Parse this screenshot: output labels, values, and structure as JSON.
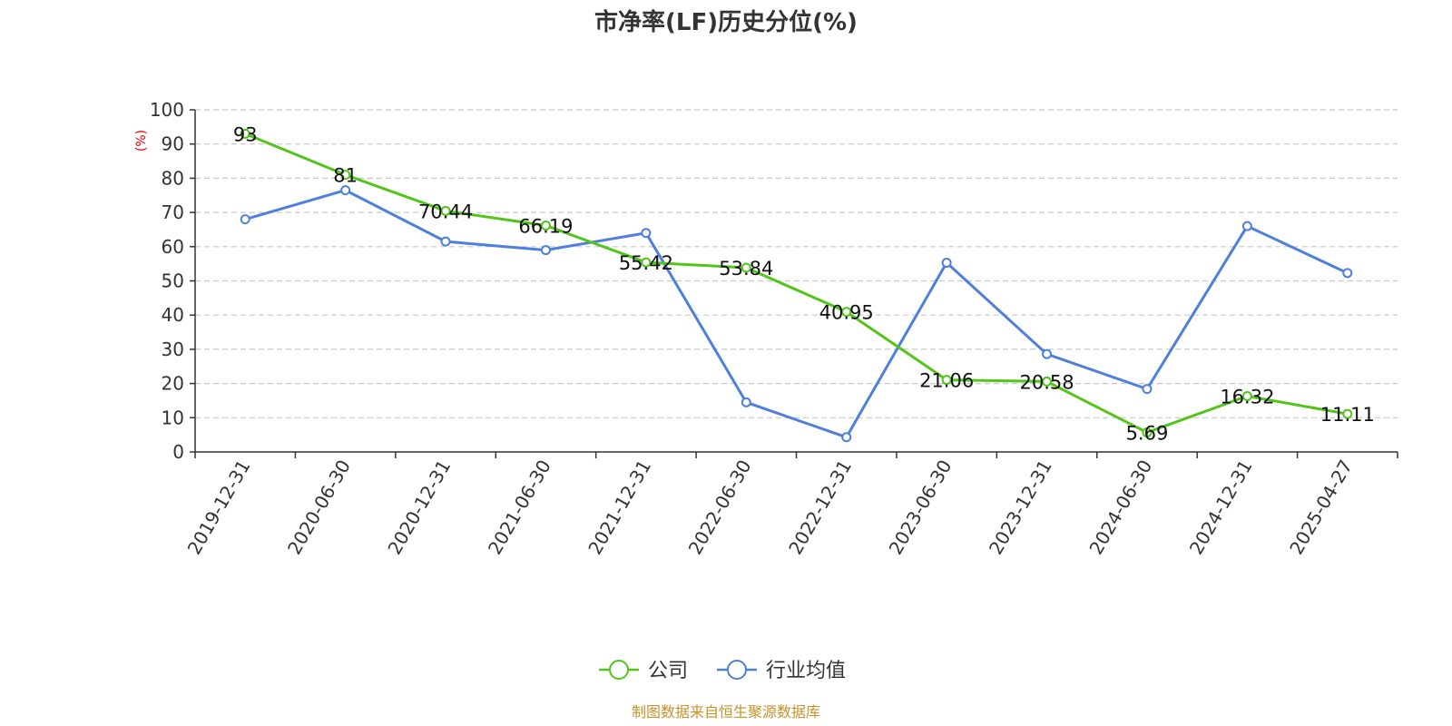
{
  "chart_data": {
    "type": "line",
    "title": "市净率(LF)历史分位(%)",
    "ylabel": "(%)",
    "ylim": [
      0,
      100
    ],
    "yticks": [
      "0",
      "10",
      "20",
      "30",
      "40",
      "50",
      "60",
      "70",
      "80",
      "90",
      "100"
    ],
    "categories": [
      "2019-12-31",
      "2020-06-30",
      "2020-12-31",
      "2021-06-30",
      "2021-12-31",
      "2022-06-30",
      "2022-12-31",
      "2023-06-30",
      "2023-12-31",
      "2024-06-30",
      "2024-12-31",
      "2025-04-27"
    ],
    "series": [
      {
        "name": "公司",
        "color": "#52c41a",
        "values": [
          93,
          81,
          70.44,
          66.19,
          55.42,
          53.84,
          40.95,
          21.06,
          20.58,
          5.69,
          16.32,
          11.11
        ],
        "labels": [
          "93",
          "81",
          "70.44",
          "66.19",
          "55.42",
          "53.84",
          "40.95",
          "21.06",
          "20.58",
          "5.69",
          "16.32",
          "11.11"
        ]
      },
      {
        "name": "行业均值",
        "color": "#4f7fdc",
        "values": [
          68,
          76.5,
          61.5,
          59,
          64,
          14.5,
          4.3,
          55.3,
          28.6,
          18.4,
          66,
          52.3
        ]
      }
    ],
    "grid": true,
    "legend_position": "bottom-center"
  },
  "source_note": "制图数据来自恒生聚源数据库"
}
